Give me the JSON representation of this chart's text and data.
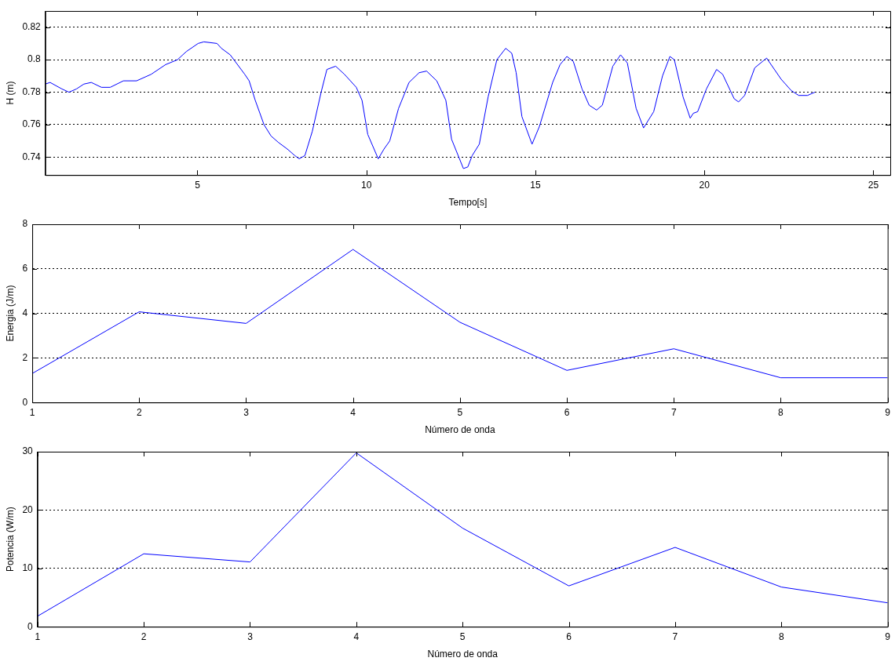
{
  "chart_data": [
    {
      "type": "line",
      "xlabel": "Tempo[s]",
      "ylabel": "H (m)",
      "xlim": [
        0.5,
        25.5
      ],
      "xticks": [
        5,
        10,
        15,
        20,
        25
      ],
      "ylim": [
        0.729,
        0.83
      ],
      "yticks": [
        0.74,
        0.76,
        0.78,
        0.8,
        0.82
      ],
      "grid": "y",
      "color": "#0000ff",
      "x": [
        0.5,
        0.64,
        0.99,
        1.2,
        1.42,
        1.64,
        1.86,
        2.16,
        2.42,
        2.81,
        3.2,
        3.63,
        4.06,
        4.41,
        4.67,
        5.02,
        5.19,
        5.58,
        5.71,
        5.97,
        6.4,
        6.53,
        6.71,
        6.97,
        7.18,
        7.4,
        7.66,
        7.88,
        8.01,
        8.18,
        8.4,
        8.66,
        8.83,
        9.09,
        9.35,
        9.7,
        9.87,
        10.04,
        10.35,
        10.52,
        10.69,
        10.95,
        11.26,
        11.56,
        11.78,
        12.08,
        12.35,
        12.52,
        12.87,
        13.0,
        13.13,
        13.34,
        13.6,
        13.86,
        14.12,
        14.3,
        14.43,
        14.6,
        14.9,
        15.12,
        15.51,
        15.73,
        15.93,
        16.12,
        16.38,
        16.59,
        16.81,
        16.98,
        17.29,
        17.52,
        17.72,
        17.98,
        18.2,
        18.5,
        18.76,
        18.98,
        19.11,
        19.37,
        19.58,
        19.67,
        19.8,
        20.06,
        20.36,
        20.54,
        20.88,
        21.01,
        21.19,
        21.49,
        21.84,
        22.27,
        22.57,
        22.79,
        23.05,
        23.27
      ],
      "values": [
        0.785,
        0.786,
        0.782,
        0.78,
        0.782,
        0.785,
        0.786,
        0.783,
        0.783,
        0.787,
        0.787,
        0.791,
        0.797,
        0.8,
        0.805,
        0.81,
        0.811,
        0.81,
        0.807,
        0.803,
        0.791,
        0.787,
        0.775,
        0.76,
        0.753,
        0.749,
        0.745,
        0.741,
        0.739,
        0.741,
        0.756,
        0.78,
        0.794,
        0.796,
        0.791,
        0.783,
        0.775,
        0.754,
        0.739,
        0.745,
        0.75,
        0.77,
        0.786,
        0.792,
        0.793,
        0.787,
        0.775,
        0.751,
        0.733,
        0.734,
        0.741,
        0.748,
        0.777,
        0.8,
        0.807,
        0.804,
        0.792,
        0.765,
        0.748,
        0.759,
        0.786,
        0.797,
        0.802,
        0.799,
        0.782,
        0.772,
        0.769,
        0.772,
        0.796,
        0.803,
        0.798,
        0.77,
        0.758,
        0.768,
        0.79,
        0.802,
        0.8,
        0.777,
        0.764,
        0.767,
        0.768,
        0.782,
        0.794,
        0.791,
        0.776,
        0.774,
        0.778,
        0.795,
        0.801,
        0.788,
        0.781,
        0.778,
        0.778,
        0.78
      ]
    },
    {
      "type": "line",
      "xlabel": "Número de onda",
      "ylabel": "Energia (J/m)",
      "xlim": [
        1,
        9
      ],
      "xticks": [
        1,
        2,
        3,
        4,
        5,
        6,
        7,
        8,
        9
      ],
      "ylim": [
        0,
        8
      ],
      "yticks": [
        0,
        2,
        4,
        6,
        8
      ],
      "grid": "y",
      "color": "#0000ff",
      "x": [
        1,
        2,
        3,
        4,
        5,
        6,
        7,
        8,
        9
      ],
      "values": [
        1.3,
        4.07,
        3.55,
        6.87,
        3.6,
        1.44,
        2.41,
        1.11,
        1.11
      ]
    },
    {
      "type": "line",
      "xlabel": "Número de onda",
      "ylabel": "Potencia (W/m)",
      "xlim": [
        1,
        9
      ],
      "xticks": [
        1,
        2,
        3,
        4,
        5,
        6,
        7,
        8,
        9
      ],
      "ylim": [
        0,
        30
      ],
      "yticks": [
        0,
        10,
        20,
        30
      ],
      "grid": "y",
      "color": "#0000ff",
      "x": [
        1,
        2,
        3,
        4,
        5,
        6,
        7,
        8,
        9
      ],
      "values": [
        1.8,
        12.5,
        11.1,
        29.8,
        16.9,
        7.0,
        13.6,
        6.8,
        4.1
      ]
    }
  ]
}
